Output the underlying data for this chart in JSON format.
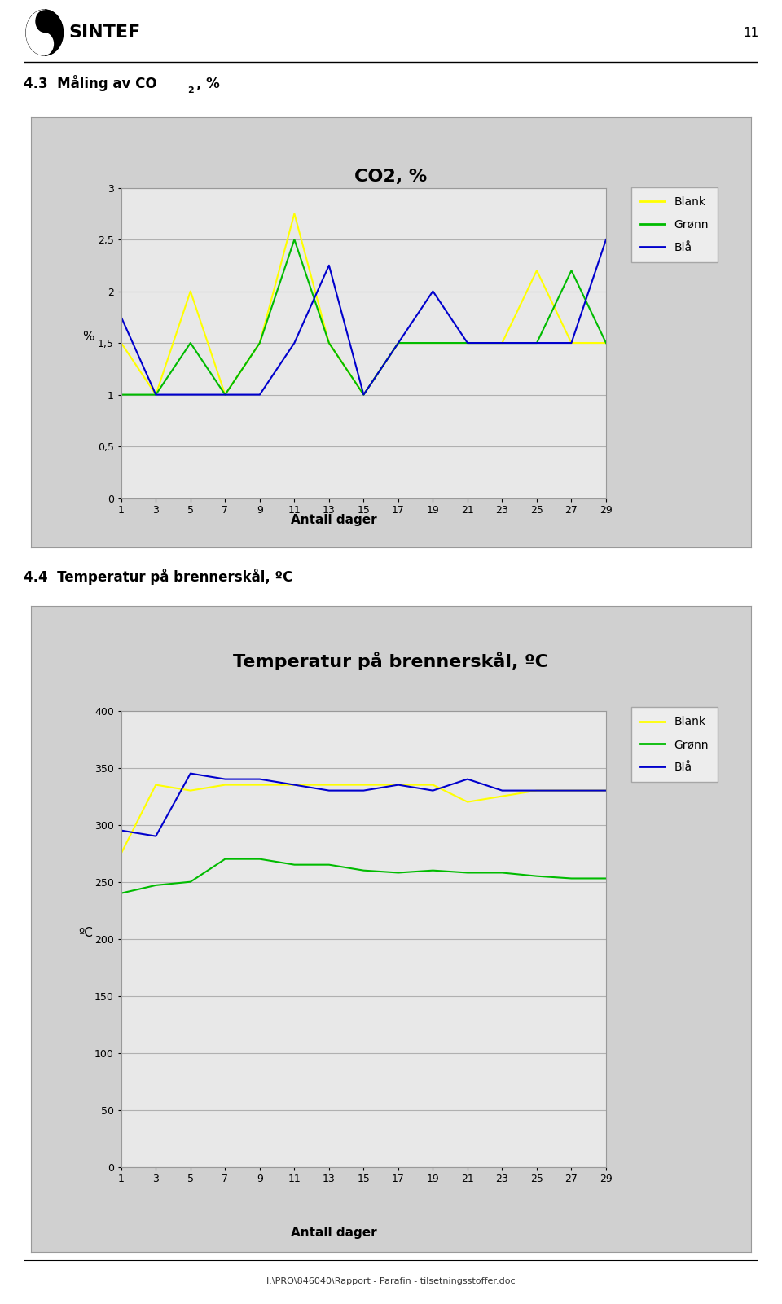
{
  "page_number": "11",
  "section1_heading": "4.3  Måling av CO₂, %",
  "section2_heading": "4.4  Temperatur på brennerskål, ºC",
  "chart1_title": "CO2, %",
  "chart1_ylabel": "%",
  "chart1_xlabel": "Antall dager",
  "chart1_ylim": [
    0,
    3
  ],
  "chart1_yticks": [
    0,
    0.5,
    1,
    1.5,
    2,
    2.5,
    3
  ],
  "chart1_ytick_labels": [
    "0",
    "0,5",
    "1",
    "1,5",
    "2",
    "2,5",
    "3"
  ],
  "chart1_xticks": [
    1,
    3,
    5,
    7,
    9,
    11,
    13,
    15,
    17,
    19,
    21,
    23,
    25,
    27,
    29
  ],
  "chart1_blank": [
    1.5,
    1.0,
    2.0,
    1.0,
    1.5,
    2.75,
    1.5,
    1.0,
    1.5,
    1.5,
    1.5,
    1.5,
    2.2,
    1.5,
    1.5
  ],
  "chart1_gronn": [
    1.0,
    1.0,
    1.5,
    1.0,
    1.5,
    2.5,
    1.5,
    1.0,
    1.5,
    1.5,
    1.5,
    1.5,
    1.5,
    2.2,
    1.5
  ],
  "chart1_bla": [
    1.75,
    1.0,
    1.0,
    1.0,
    1.0,
    1.5,
    2.25,
    1.0,
    1.5,
    2.0,
    1.5,
    1.5,
    1.5,
    1.5,
    2.5
  ],
  "chart1_blank_color": "#ffff00",
  "chart1_gronn_color": "#00bb00",
  "chart1_bla_color": "#0000cc",
  "chart2_title": "Temperatur på brennerskål, ºC",
  "chart2_ylabel": "ºC",
  "chart2_xlabel": "Antall dager",
  "chart2_ylim": [
    0,
    400
  ],
  "chart2_yticks": [
    0,
    50,
    100,
    150,
    200,
    250,
    300,
    350,
    400
  ],
  "chart2_ytick_labels": [
    "0",
    "50",
    "100",
    "150",
    "200",
    "250",
    "300",
    "350",
    "400"
  ],
  "chart2_xticks": [
    1,
    3,
    5,
    7,
    9,
    11,
    13,
    15,
    17,
    19,
    21,
    23,
    25,
    27,
    29
  ],
  "chart2_blank": [
    275,
    335,
    330,
    335,
    335,
    335,
    335,
    335,
    335,
    335,
    320,
    325,
    330,
    330,
    330
  ],
  "chart2_gronn": [
    240,
    247,
    250,
    270,
    270,
    265,
    265,
    260,
    258,
    260,
    258,
    258,
    255,
    253,
    253
  ],
  "chart2_bla": [
    295,
    290,
    345,
    340,
    340,
    335,
    330,
    330,
    335,
    330,
    340,
    330,
    330,
    330,
    330
  ],
  "chart2_blank_color": "#ffff00",
  "chart2_gronn_color": "#00bb00",
  "chart2_bla_color": "#0000cc",
  "legend_blank": "Blank",
  "legend_gronn": "Grønn",
  "legend_bla": "Blå",
  "footer_text": "I:\\PRO\\846040\\Rapport - Parafin - tilsetningsstoffer.doc",
  "bg_color": "#ffffff",
  "plot_area_color": "#e8e8e8",
  "outer_box_color": "#d0d0d0",
  "grid_color": "#b0b0b0"
}
